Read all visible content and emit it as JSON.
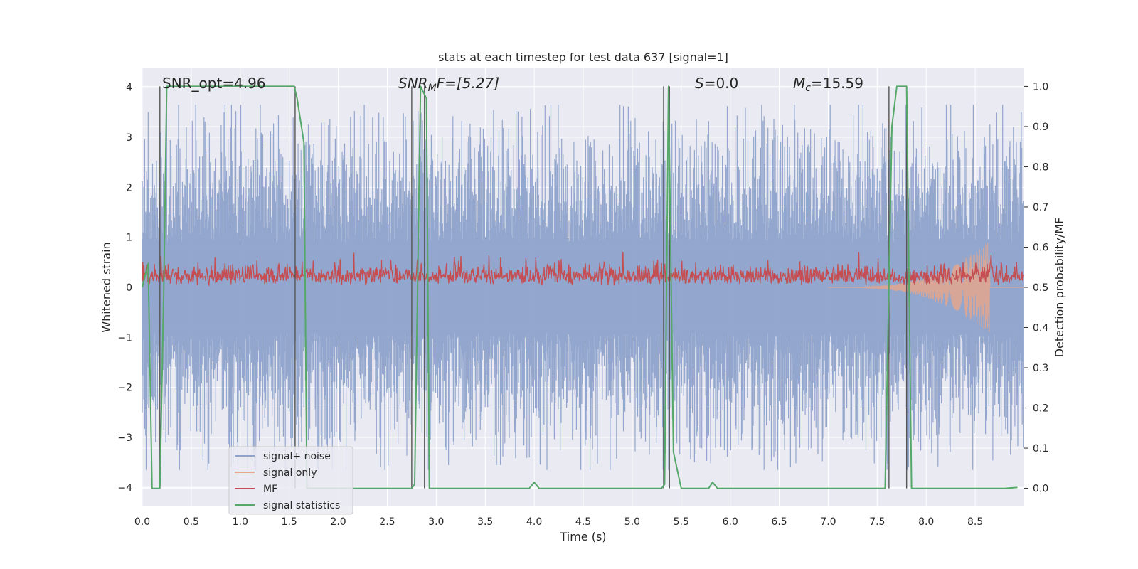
{
  "chart_data": {
    "type": "line",
    "title": "stats at each timestep for test data 637 [signal=1]",
    "xlabel": "Time (s)",
    "ylabel_left": "Whitened strain",
    "ylabel_right": "Detection probability/MF",
    "xlim": [
      0.0,
      9.0
    ],
    "ylim_left": [
      -4.38,
      4.38
    ],
    "ylim_right": [
      -0.045,
      1.045
    ],
    "xticks": [
      "0.0",
      "0.5",
      "1.0",
      "1.5",
      "2.0",
      "2.5",
      "3.0",
      "3.5",
      "4.0",
      "4.5",
      "5.0",
      "5.5",
      "6.0",
      "6.5",
      "7.0",
      "7.5",
      "8.0",
      "8.5"
    ],
    "yticks_left": [
      "−4",
      "−3",
      "−2",
      "−1",
      "0",
      "1",
      "2",
      "3",
      "4"
    ],
    "yticks_right": [
      "0.0",
      "0.1",
      "0.2",
      "0.3",
      "0.4",
      "0.5",
      "0.6",
      "0.7",
      "0.8",
      "0.9",
      "1.0"
    ],
    "grid": true,
    "legend_position": "lower-left",
    "annotations": {
      "snr_opt": "SNR_opt=4.96",
      "snr_mf_italic": "SNR",
      "snr_mf_sub": "M",
      "snr_mf_rest": "F=[5.27]",
      "s_italic": "S",
      "s_rest": "=0.0",
      "mc_italic": "M",
      "mc_sub": "c",
      "mc_rest": "=15.59"
    },
    "series": [
      {
        "name": "signal+ noise",
        "color": "#8ea2ca",
        "axis": "left",
        "description_values": "dense noise, approx range -3.6 to 3.6",
        "amplitude": 1.8
      },
      {
        "name": "signal only",
        "color": "#e8a68a",
        "axis": "left",
        "chirp_start": 7.0,
        "chirp_end": 8.65,
        "peak_amplitude": 0.95
      },
      {
        "name": "MF",
        "color": "#c44e52",
        "axis": "right",
        "baseline": 0.55,
        "max": 0.62
      },
      {
        "name": "signal statistics",
        "color": "#55a868",
        "axis": "right",
        "x": [
          0.0,
          0.06,
          0.1,
          0.18,
          0.22,
          0.25,
          1.55,
          1.58,
          1.65,
          1.68,
          2.75,
          2.78,
          2.84,
          2.9,
          2.93,
          3.3,
          3.95,
          4.0,
          4.05,
          5.3,
          5.33,
          5.37,
          5.42,
          5.5,
          5.78,
          5.82,
          5.87,
          7.58,
          7.65,
          7.7,
          7.8,
          7.85,
          8.8,
          8.93
        ],
        "y": [
          0.5,
          0.56,
          0.0,
          0.0,
          0.5,
          1.0,
          1.0,
          0.97,
          0.86,
          0.0,
          0.0,
          0.01,
          1.0,
          0.97,
          0.0,
          0.0,
          0.0,
          0.015,
          0.0,
          0.0,
          0.01,
          1.0,
          0.09,
          0.0,
          0.0,
          0.015,
          0.0,
          0.0,
          0.9,
          1.0,
          1.0,
          0.0,
          0.0,
          0.002
        ]
      }
    ],
    "vertical_lines_x": [
      0.18,
      1.56,
      2.75,
      2.88,
      5.32,
      5.38,
      7.62,
      7.8
    ]
  }
}
